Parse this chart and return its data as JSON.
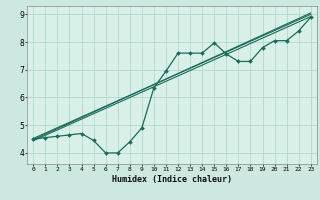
{
  "title": "",
  "xlabel": "Humidex (Indice chaleur)",
  "ylabel": "",
  "background_color": "#cce8e0",
  "plot_bg_color": "#d8f0e8",
  "line_color": "#1a6b5a",
  "grid_color": "#aad4cc",
  "xlim": [
    -0.5,
    23.5
  ],
  "ylim": [
    3.6,
    9.3
  ],
  "x_ticks": [
    0,
    1,
    2,
    3,
    4,
    5,
    6,
    7,
    8,
    9,
    10,
    11,
    12,
    13,
    14,
    15,
    16,
    17,
    18,
    19,
    20,
    21,
    22,
    23
  ],
  "y_ticks": [
    4,
    5,
    6,
    7,
    8,
    9
  ],
  "data_x": [
    0,
    1,
    2,
    3,
    4,
    5,
    6,
    7,
    8,
    9,
    10,
    11,
    12,
    13,
    14,
    15,
    16,
    17,
    18,
    19,
    20,
    21,
    22,
    23
  ],
  "data_y": [
    4.5,
    4.55,
    4.6,
    4.65,
    4.7,
    4.45,
    4.0,
    4.0,
    4.4,
    4.9,
    6.35,
    6.95,
    7.6,
    7.6,
    7.6,
    7.97,
    7.57,
    7.3,
    7.3,
    7.8,
    8.05,
    8.05,
    8.4,
    8.9
  ],
  "trend1_x": [
    0,
    23
  ],
  "trend1_y": [
    4.48,
    9.05
  ],
  "trend2_x": [
    0,
    23
  ],
  "trend2_y": [
    4.52,
    9.0
  ],
  "trend3_x": [
    0,
    23
  ],
  "trend3_y": [
    4.44,
    8.92
  ]
}
